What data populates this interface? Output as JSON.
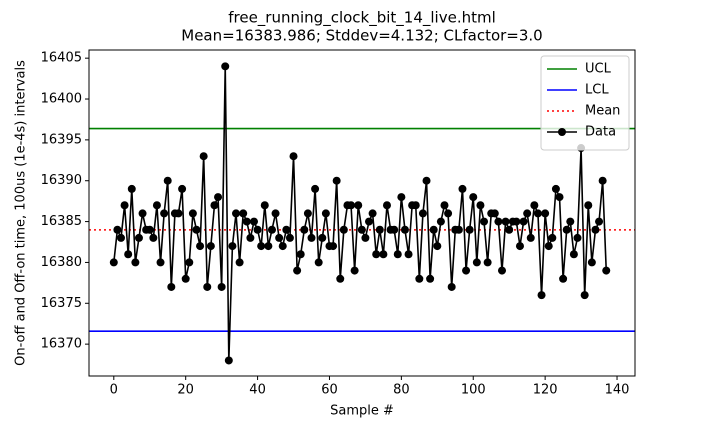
{
  "chart_data": {
    "type": "control",
    "title": "free_running_clock_bit_14_live.html",
    "subtitle": "Mean=16383.986; Stddev=4.132; CLfactor=3.0",
    "x_label": "Sample #",
    "y_label": "On-off and Off-on time, 100us (1e-4s) intervals",
    "xlim": [
      -6.9,
      145
    ],
    "ylim": [
      16366.1,
      16406
    ],
    "xticks": [
      0,
      20,
      40,
      60,
      80,
      100,
      120,
      140
    ],
    "yticks": [
      16370,
      16375,
      16380,
      16385,
      16390,
      16395,
      16400,
      16405
    ],
    "legend": "upper right",
    "reference_lines": [
      {
        "name": "UCL",
        "color": "#008000",
        "style": "solid",
        "value": 16396.382
      },
      {
        "name": "LCL",
        "color": "#0000ff",
        "style": "solid",
        "value": 16371.59
      },
      {
        "name": "Mean",
        "color": "#ff0000",
        "style": "dotted",
        "value": 16383.986
      }
    ],
    "series": [
      {
        "name": "Data",
        "color": "#000000",
        "x": [
          0,
          1,
          2,
          3,
          4,
          5,
          6,
          7,
          8,
          9,
          10,
          11,
          12,
          13,
          14,
          15,
          16,
          17,
          18,
          19,
          20,
          21,
          22,
          23,
          24,
          25,
          26,
          27,
          28,
          29,
          30,
          31,
          32,
          33,
          34,
          35,
          36,
          37,
          38,
          39,
          40,
          41,
          42,
          43,
          44,
          45,
          46,
          47,
          48,
          49,
          50,
          51,
          52,
          53,
          54,
          55,
          56,
          57,
          58,
          59,
          60,
          61,
          62,
          63,
          64,
          65,
          66,
          67,
          68,
          69,
          70,
          71,
          72,
          73,
          74,
          75,
          76,
          77,
          78,
          79,
          80,
          81,
          82,
          83,
          84,
          85,
          86,
          87,
          88,
          89,
          90,
          91,
          92,
          93,
          94,
          95,
          96,
          97,
          98,
          99,
          100,
          101,
          102,
          103,
          104,
          105,
          106,
          107,
          108,
          109,
          110,
          111,
          112,
          113,
          114,
          115,
          116,
          117,
          118,
          119,
          120,
          121,
          122,
          123,
          124,
          125,
          126,
          127,
          128,
          129,
          130,
          131,
          132,
          133,
          134,
          135,
          136,
          137
        ],
        "values": [
          16380,
          16384,
          16383,
          16387,
          16381,
          16389,
          16380,
          16383,
          16386,
          16384,
          16384,
          16383,
          16387,
          16380,
          16386,
          16390,
          16377,
          16386,
          16386,
          16389,
          16378,
          16380,
          16386,
          16384,
          16382,
          16393,
          16377,
          16382,
          16387,
          16388,
          16377,
          16404,
          16368,
          16382,
          16386,
          16380,
          16386,
          16385,
          16383,
          16385,
          16384,
          16382,
          16387,
          16382,
          16384,
          16386,
          16383,
          16382,
          16384,
          16383,
          16393,
          16379,
          16381,
          16384,
          16386,
          16383,
          16389,
          16380,
          16383,
          16386,
          16382,
          16382,
          16390,
          16378,
          16384,
          16387,
          16387,
          16379,
          16387,
          16384,
          16383,
          16385,
          16386,
          16381,
          16384,
          16381,
          16387,
          16384,
          16384,
          16381,
          16388,
          16384,
          16381,
          16387,
          16387,
          16378,
          16386,
          16390,
          16378,
          16384,
          16382,
          16385,
          16387,
          16386,
          16377,
          16384,
          16384,
          16389,
          16379,
          16384,
          16388,
          16380,
          16387,
          16385,
          16380,
          16386,
          16386,
          16385,
          16379,
          16385,
          16384,
          16385,
          16385,
          16382,
          16385,
          16386,
          16383,
          16387,
          16386,
          16376,
          16386,
          16382,
          16383,
          16389,
          16388,
          16378,
          16384,
          16385,
          16381,
          16383,
          16394,
          16376,
          16387,
          16380,
          16384,
          16385,
          16390,
          16379
        ]
      }
    ]
  }
}
